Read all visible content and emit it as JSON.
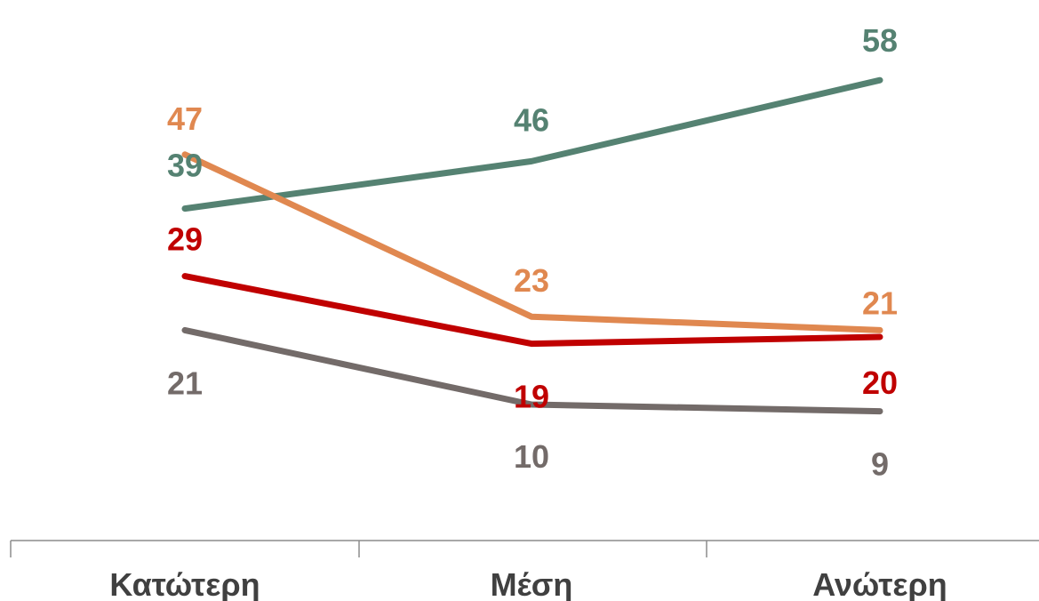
{
  "chart_data": {
    "type": "line",
    "categories": [
      "Κατώτερη",
      "Μέση",
      "Ανώτερη"
    ],
    "series": [
      {
        "values": [
          39,
          46,
          58
        ],
        "color": "#558272"
      },
      {
        "values": [
          47,
          23,
          21
        ],
        "color": "#E08850"
      },
      {
        "values": [
          29,
          19,
          20
        ],
        "color": "#C00000"
      },
      {
        "values": [
          21,
          10,
          9
        ],
        "color": "#736B69"
      }
    ],
    "title": "",
    "xlabel": "",
    "ylabel": "",
    "ylim": [
      0,
      65
    ],
    "grid": false,
    "legend": "none",
    "data_labels": true
  }
}
